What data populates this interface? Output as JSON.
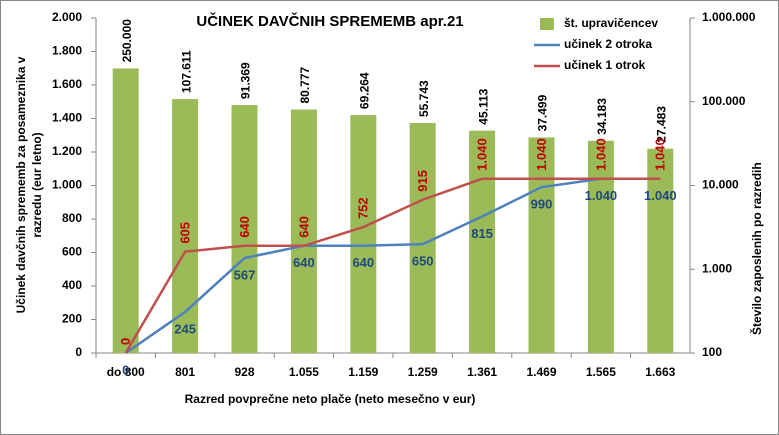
{
  "chart_data": {
    "type": "bar_line",
    "title": "UČINEK DAVČNIH SPREMEMB apr.21",
    "xlabel": "Razred povprečne neto plače (neto mesečno v eur)",
    "ylabel": "Učinek davčnih sprememb za posameznika v razredu (eur letno)",
    "y2label": "Število zaposlenih po razredih",
    "categories": [
      "do 800",
      "801",
      "928",
      "1.055",
      "1.159",
      "1.259",
      "1.361",
      "1.469",
      "1.565",
      "1.663"
    ],
    "series": [
      {
        "name": "št. upravičencev",
        "type": "bar",
        "axis": "y2",
        "color": "#9bbb59",
        "values": [
          250000,
          107611,
          91369,
          80777,
          69264,
          55743,
          45113,
          37499,
          34183,
          27483
        ],
        "value_labels": [
          "250.000",
          "107.611",
          "91.369",
          "80.777",
          "69.264",
          "55.743",
          "45.113",
          "37.499",
          "34.183",
          "27.483"
        ]
      },
      {
        "name": "učinek 2 otroka",
        "type": "line",
        "color": "#4f81bd",
        "label_color": "#1f497d",
        "values": [
          0,
          245,
          567,
          640,
          640,
          650,
          815,
          990,
          1040,
          1040
        ],
        "value_labels": [
          "0",
          "245",
          "567",
          "640",
          "640",
          "650",
          "815",
          "990",
          "1.040",
          "1.040"
        ]
      },
      {
        "name": "učinek 1 otrok",
        "type": "line",
        "color": "#c0504d",
        "label_color": "#c00000",
        "values": [
          0,
          605,
          640,
          640,
          752,
          915,
          1040,
          1040,
          1040,
          1040
        ],
        "value_labels": [
          "0",
          "605",
          "640",
          "640",
          "752",
          "915",
          "1.040",
          "1.040",
          "1.040",
          "1.040"
        ]
      }
    ],
    "ylim": [
      0,
      2000
    ],
    "yticks": [
      0,
      200,
      400,
      600,
      800,
      {
        "value": 1000,
        "label": "1.000"
      },
      {
        "value": 1200,
        "label": "1.200"
      },
      {
        "value": 1400,
        "label": "1.400"
      },
      {
        "value": 1600,
        "label": "1.600"
      },
      {
        "value": 1800,
        "label": "1.800"
      },
      {
        "value": 2000,
        "label": "2.000"
      }
    ],
    "y2lim": [
      100,
      1000000
    ],
    "y2ticks": [
      100,
      {
        "value": 1000,
        "label": "1.000"
      },
      {
        "value": 10000,
        "label": "10.000"
      },
      {
        "value": 100000,
        "label": "100.000"
      },
      {
        "value": 1000000,
        "label": "1.000.000"
      }
    ],
    "y2log": true,
    "legend": "top-right"
  }
}
